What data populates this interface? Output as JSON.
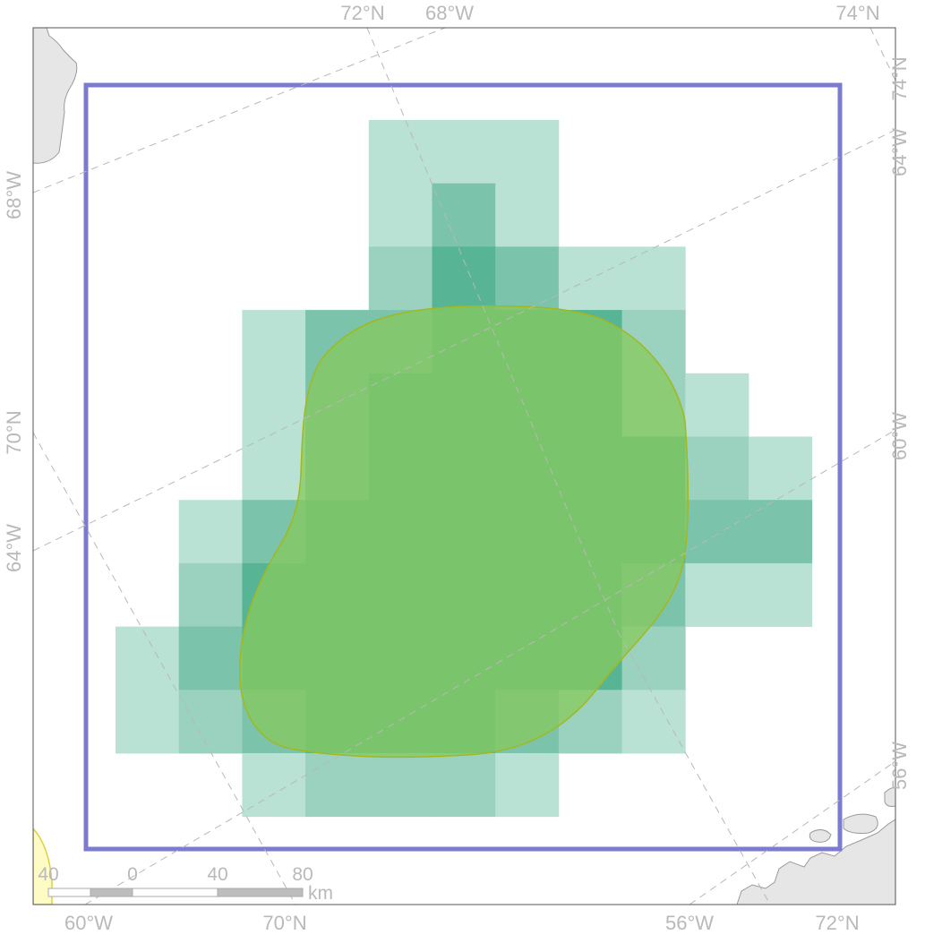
{
  "colors": {
    "frame": "#555555",
    "land": "#e6e6e6",
    "land_stroke": "#9a9a9a",
    "graticule": "#b8b8b8",
    "bbox": "#7b7bd2",
    "cell_1": "#b9e1d4",
    "cell_2": "#9bd1bf",
    "cell_3": "#7bc4ab",
    "cell_4": "#57b596",
    "range_fill": "#86c95c",
    "range_stroke": "#a2b81e",
    "corner_blob_fill": "#fffbc4",
    "corner_blob_stroke": "#e0d040",
    "tick_text": "#b9b9b9"
  },
  "grid_cells": [
    {
      "row": 0,
      "col": 4,
      "level": 1
    },
    {
      "row": 0,
      "col": 5,
      "level": 1
    },
    {
      "row": 0,
      "col": 6,
      "level": 1
    },
    {
      "row": 1,
      "col": 4,
      "level": 1
    },
    {
      "row": 1,
      "col": 5,
      "level": 3
    },
    {
      "row": 1,
      "col": 6,
      "level": 1
    },
    {
      "row": 2,
      "col": 4,
      "level": 2
    },
    {
      "row": 2,
      "col": 5,
      "level": 4
    },
    {
      "row": 2,
      "col": 6,
      "level": 3
    },
    {
      "row": 2,
      "col": 7,
      "level": 1
    },
    {
      "row": 2,
      "col": 8,
      "level": 1
    },
    {
      "row": 3,
      "col": 2,
      "level": 1
    },
    {
      "row": 3,
      "col": 3,
      "level": 3
    },
    {
      "row": 3,
      "col": 4,
      "level": 3
    },
    {
      "row": 3,
      "col": 5,
      "level": 4
    },
    {
      "row": 3,
      "col": 6,
      "level": 4
    },
    {
      "row": 3,
      "col": 7,
      "level": 4
    },
    {
      "row": 3,
      "col": 8,
      "level": 2
    },
    {
      "row": 4,
      "col": 2,
      "level": 1
    },
    {
      "row": 4,
      "col": 3,
      "level": 3
    },
    {
      "row": 4,
      "col": 4,
      "level": 4
    },
    {
      "row": 4,
      "col": 5,
      "level": 4
    },
    {
      "row": 4,
      "col": 6,
      "level": 4
    },
    {
      "row": 4,
      "col": 7,
      "level": 4
    },
    {
      "row": 4,
      "col": 8,
      "level": 2
    },
    {
      "row": 4,
      "col": 9,
      "level": 1
    },
    {
      "row": 5,
      "col": 2,
      "level": 1
    },
    {
      "row": 5,
      "col": 3,
      "level": 3
    },
    {
      "row": 5,
      "col": 4,
      "level": 4
    },
    {
      "row": 5,
      "col": 5,
      "level": 4
    },
    {
      "row": 5,
      "col": 6,
      "level": 4
    },
    {
      "row": 5,
      "col": 7,
      "level": 4
    },
    {
      "row": 5,
      "col": 8,
      "level": 4
    },
    {
      "row": 5,
      "col": 9,
      "level": 2
    },
    {
      "row": 5,
      "col": 10,
      "level": 1
    },
    {
      "row": 6,
      "col": 1,
      "level": 1
    },
    {
      "row": 6,
      "col": 2,
      "level": 3
    },
    {
      "row": 6,
      "col": 3,
      "level": 4
    },
    {
      "row": 6,
      "col": 4,
      "level": 4
    },
    {
      "row": 6,
      "col": 5,
      "level": 4
    },
    {
      "row": 6,
      "col": 6,
      "level": 4
    },
    {
      "row": 6,
      "col": 7,
      "level": 4
    },
    {
      "row": 6,
      "col": 8,
      "level": 4
    },
    {
      "row": 6,
      "col": 9,
      "level": 3
    },
    {
      "row": 6,
      "col": 10,
      "level": 3
    },
    {
      "row": 7,
      "col": 1,
      "level": 2
    },
    {
      "row": 7,
      "col": 2,
      "level": 4
    },
    {
      "row": 7,
      "col": 3,
      "level": 4
    },
    {
      "row": 7,
      "col": 4,
      "level": 4
    },
    {
      "row": 7,
      "col": 5,
      "level": 4
    },
    {
      "row": 7,
      "col": 6,
      "level": 4
    },
    {
      "row": 7,
      "col": 7,
      "level": 4
    },
    {
      "row": 7,
      "col": 8,
      "level": 3
    },
    {
      "row": 7,
      "col": 9,
      "level": 1
    },
    {
      "row": 7,
      "col": 10,
      "level": 1
    },
    {
      "row": 8,
      "col": 0,
      "level": 1
    },
    {
      "row": 8,
      "col": 1,
      "level": 3
    },
    {
      "row": 8,
      "col": 2,
      "level": 4
    },
    {
      "row": 8,
      "col": 3,
      "level": 4
    },
    {
      "row": 8,
      "col": 4,
      "level": 4
    },
    {
      "row": 8,
      "col": 5,
      "level": 4
    },
    {
      "row": 8,
      "col": 6,
      "level": 4
    },
    {
      "row": 8,
      "col": 7,
      "level": 4
    },
    {
      "row": 8,
      "col": 8,
      "level": 2
    },
    {
      "row": 9,
      "col": 0,
      "level": 1
    },
    {
      "row": 9,
      "col": 1,
      "level": 2
    },
    {
      "row": 9,
      "col": 2,
      "level": 3
    },
    {
      "row": 9,
      "col": 3,
      "level": 4
    },
    {
      "row": 9,
      "col": 4,
      "level": 4
    },
    {
      "row": 9,
      "col": 5,
      "level": 4
    },
    {
      "row": 9,
      "col": 6,
      "level": 3
    },
    {
      "row": 9,
      "col": 7,
      "level": 2
    },
    {
      "row": 9,
      "col": 8,
      "level": 1
    },
    {
      "row": 10,
      "col": 2,
      "level": 1
    },
    {
      "row": 10,
      "col": 3,
      "level": 2
    },
    {
      "row": 10,
      "col": 4,
      "level": 2
    },
    {
      "row": 10,
      "col": 5,
      "level": 2
    },
    {
      "row": 10,
      "col": 6,
      "level": 1
    }
  ],
  "ticks": {
    "top": [
      "72°N",
      "68°W",
      "74°N"
    ],
    "bottom": [
      "60°W",
      "70°N",
      "56°W",
      "72°N"
    ],
    "left": [
      "68°W",
      "70°N",
      "64°W"
    ],
    "right": [
      "74°N",
      "64°W",
      "60°W",
      "56°W"
    ]
  },
  "scale_bar": {
    "labels": [
      "40",
      "0",
      "40",
      "80"
    ],
    "unit": "km"
  }
}
